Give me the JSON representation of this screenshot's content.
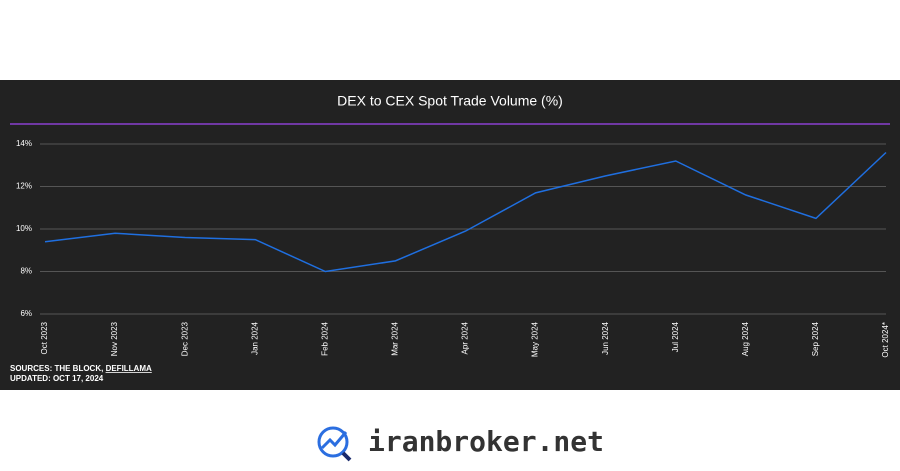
{
  "chart_data": {
    "type": "line",
    "title": "DEX to CEX Spot Trade Volume (%)",
    "categories": [
      "Oct 2023",
      "Nov 2023",
      "Dec 2023",
      "Jan 2024",
      "Feb 2024",
      "Mar 2024",
      "Apr 2024",
      "May 2024",
      "Jun 2024",
      "Jul 2024",
      "Aug 2024",
      "Sep 2024",
      "Oct 2024*"
    ],
    "series": [
      {
        "name": "DEX to CEX Spot Trade Volume",
        "color": "#1f6fe0",
        "values": [
          9.4,
          9.8,
          9.6,
          9.5,
          8.0,
          8.5,
          9.9,
          11.7,
          12.5,
          13.2,
          11.6,
          10.5,
          13.6
        ]
      }
    ],
    "ylim": [
      6,
      14
    ],
    "yticks": [
      {
        "value": 6,
        "label": "6%"
      },
      {
        "value": 8,
        "label": "8%"
      },
      {
        "value": 10,
        "label": "10%"
      },
      {
        "value": 12,
        "label": "12%"
      },
      {
        "value": 14,
        "label": "14%"
      }
    ],
    "grid": true,
    "sources_prefix": "SOURCES: THE BLOCK, ",
    "sources_link": "DEFILLAMA",
    "updated": "UPDATED: OCT 17, 2024"
  },
  "footer": {
    "brand": "iranbroker.net"
  }
}
